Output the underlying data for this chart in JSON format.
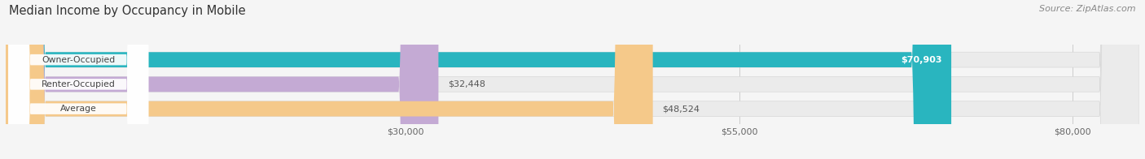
{
  "title": "Median Income by Occupancy in Mobile",
  "source": "Source: ZipAtlas.com",
  "categories": [
    "Owner-Occupied",
    "Renter-Occupied",
    "Average"
  ],
  "values": [
    70903,
    32448,
    48524
  ],
  "labels": [
    "$70,903",
    "$32,448",
    "$48,524"
  ],
  "label_inside": [
    true,
    false,
    false
  ],
  "bar_colors": [
    "#29b5bf",
    "#c4aad4",
    "#f5c98a"
  ],
  "bar_bg_colors": [
    "#ebebeb",
    "#ebebeb",
    "#ebebeb"
  ],
  "xmin": 0,
  "xmax": 85000,
  "xticks": [
    30000,
    55000,
    80000
  ],
  "xticklabels": [
    "$30,000",
    "$55,000",
    "$80,000"
  ],
  "title_fontsize": 10.5,
  "source_fontsize": 8,
  "bar_height": 0.62,
  "background_color": "#f5f5f5"
}
